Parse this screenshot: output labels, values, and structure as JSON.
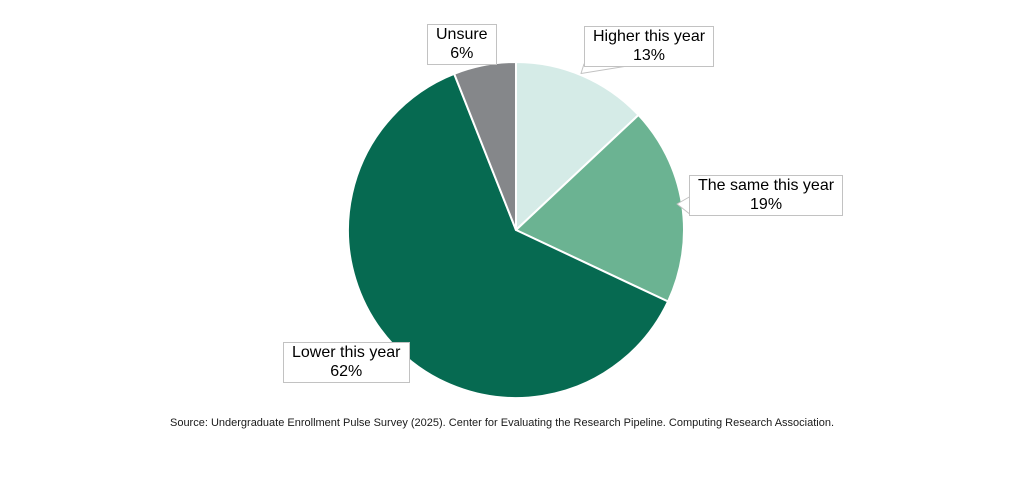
{
  "chart_data": {
    "type": "pie",
    "title": "",
    "start_angle_deg": 0,
    "direction": "clockwise",
    "slices": [
      {
        "label": "Higher this year",
        "value": 13,
        "pct_label": "13%",
        "color": "#d5ebe7"
      },
      {
        "label": "The same this year",
        "value": 19,
        "pct_label": "19%",
        "color": "#6bb392"
      },
      {
        "label": "Lower this year",
        "value": 62,
        "pct_label": "62%",
        "color": "#066a51"
      },
      {
        "label": "Unsure",
        "value": 6,
        "pct_label": "6%",
        "color": "#85878a"
      }
    ],
    "legend_position": "none",
    "labels_style": "callout-boxes",
    "source_note": "Source: Undergraduate Enrollment Pulse Survey (2025). Center for Evaluating the Research Pipeline. Computing Research Association."
  },
  "colors": {
    "slice_border": "#ffffff",
    "callout_border": "#c2c2c2",
    "callout_bg": "#ffffff",
    "text": "#000000"
  }
}
